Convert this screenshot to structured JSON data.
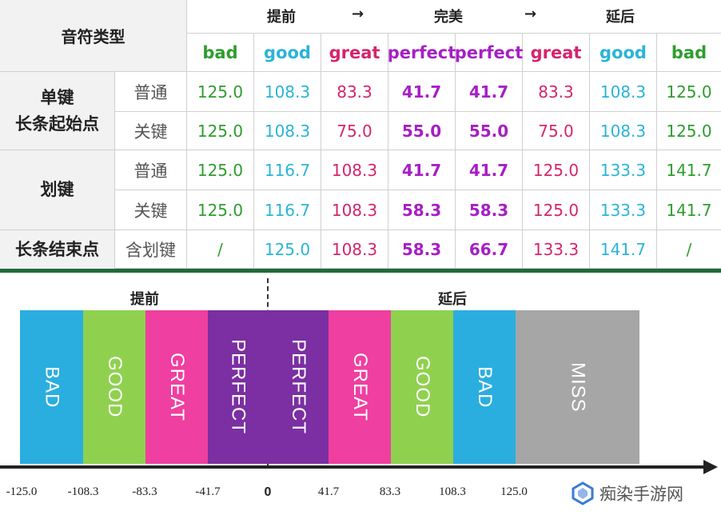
{
  "table": {
    "corner_label": "音符类型",
    "timing_header": [
      "提前",
      "→",
      "完美",
      "→",
      "延后"
    ],
    "judgements": [
      "bad",
      "good",
      "great",
      "perfect",
      "perfect",
      "great",
      "good",
      "bad"
    ],
    "groups": [
      {
        "name_line1": "单键",
        "name_line2": "长条起始点"
      },
      {
        "name_line1": "划键",
        "name_line2": ""
      },
      {
        "name_line1": "长条结束点",
        "name_line2": ""
      }
    ],
    "rows": [
      {
        "sub": "普通",
        "values": [
          "125.0",
          "108.3",
          "83.3",
          "41.7",
          "41.7",
          "83.3",
          "108.3",
          "125.0"
        ]
      },
      {
        "sub": "关键",
        "values": [
          "125.0",
          "108.3",
          "75.0",
          "55.0",
          "55.0",
          "75.0",
          "108.3",
          "125.0"
        ]
      },
      {
        "sub": "普通",
        "values": [
          "125.0",
          "116.7",
          "108.3",
          "41.7",
          "41.7",
          "125.0",
          "133.3",
          "141.7"
        ]
      },
      {
        "sub": "关键",
        "values": [
          "125.0",
          "116.7",
          "108.3",
          "58.3",
          "58.3",
          "125.0",
          "133.3",
          "141.7"
        ]
      },
      {
        "sub": "含划键",
        "values": [
          "/",
          "125.0",
          "108.3",
          "58.3",
          "66.7",
          "133.3",
          "141.7",
          "/"
        ]
      }
    ]
  },
  "diagram": {
    "early_label": "提前",
    "late_label": "延后",
    "blocks": [
      {
        "label": "BAD",
        "color": "#2aaee0"
      },
      {
        "label": "GOOD",
        "color": "#8fd14f"
      },
      {
        "label": "GREAT",
        "color": "#ef3fa0"
      },
      {
        "label": "PERFECT",
        "color": "#7b2fa2"
      },
      {
        "label": "PERFECT",
        "color": "#7b2fa2"
      },
      {
        "label": "GREAT",
        "color": "#ef3fa0"
      },
      {
        "label": "GOOD",
        "color": "#8fd14f"
      },
      {
        "label": "BAD",
        "color": "#2aaee0"
      },
      {
        "label": "MISS",
        "color": "#a6a6a6"
      }
    ],
    "ticks": [
      "-125.0",
      "-108.3",
      "-83.3",
      "-41.7",
      "0",
      "41.7",
      "83.3",
      "108.3",
      "125.0"
    ]
  },
  "watermark": {
    "text": "痴染手游网",
    "icon": "logo-icon"
  }
}
